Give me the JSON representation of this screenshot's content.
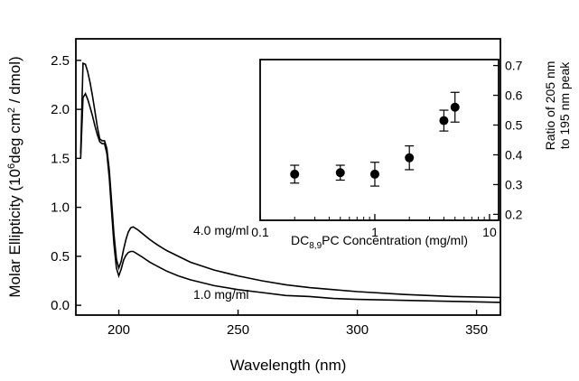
{
  "chart_data": [
    {
      "type": "line",
      "title": "",
      "xlabel": "Wavelength (nm)",
      "ylabel": "Molar Ellipticity (10⁶deg cm² / dmol)",
      "xlim": [
        182,
        360
      ],
      "ylim": [
        -0.1,
        2.72
      ],
      "xticks": [
        200,
        250,
        300,
        350
      ],
      "yticks": [
        0.0,
        0.5,
        1.0,
        1.5,
        2.0,
        2.5
      ],
      "xtick_labels": [
        "200",
        "250",
        "300",
        "350"
      ],
      "ytick_labels": [
        "0.0",
        "0.5",
        "1.0",
        "1.5",
        "2.0",
        "2.5"
      ],
      "grid": false,
      "series": [
        {
          "name": "4.0 mg/ml",
          "x": [
            184,
            185,
            186,
            187,
            188,
            189,
            190,
            191,
            192,
            193,
            194,
            195,
            196,
            197,
            198,
            199,
            200,
            201,
            202,
            203,
            204,
            205,
            206,
            208,
            210,
            213,
            216,
            220,
            225,
            230,
            240,
            250,
            260,
            270,
            280,
            290,
            300,
            320,
            340,
            360
          ],
          "y": [
            1.55,
            2.47,
            2.46,
            2.38,
            2.27,
            2.13,
            1.98,
            1.82,
            1.7,
            1.68,
            1.68,
            1.6,
            1.38,
            1.05,
            0.72,
            0.47,
            0.38,
            0.45,
            0.57,
            0.67,
            0.75,
            0.79,
            0.8,
            0.77,
            0.73,
            0.67,
            0.62,
            0.56,
            0.5,
            0.44,
            0.36,
            0.3,
            0.25,
            0.21,
            0.18,
            0.16,
            0.14,
            0.11,
            0.09,
            0.08
          ]
        },
        {
          "name": "1.0 mg/ml",
          "x": [
            184,
            185,
            186,
            187,
            188,
            189,
            190,
            191,
            192,
            193,
            194,
            195,
            196,
            197,
            198,
            199,
            200,
            201,
            202,
            203,
            204,
            205,
            206,
            208,
            210,
            213,
            216,
            220,
            225,
            230,
            240,
            250,
            260,
            270,
            280,
            290,
            300,
            320,
            340,
            360
          ],
          "y": [
            1.5,
            2.12,
            2.16,
            2.1,
            2.02,
            1.93,
            1.83,
            1.74,
            1.67,
            1.65,
            1.65,
            1.55,
            1.3,
            0.95,
            0.62,
            0.38,
            0.3,
            0.37,
            0.46,
            0.51,
            0.54,
            0.55,
            0.55,
            0.52,
            0.49,
            0.44,
            0.4,
            0.35,
            0.3,
            0.26,
            0.2,
            0.16,
            0.13,
            0.1,
            0.09,
            0.07,
            0.06,
            0.05,
            0.04,
            0.03
          ]
        }
      ],
      "annotations": [
        "4.0 mg/ml",
        "1.0 mg/ml"
      ]
    },
    {
      "type": "scatter",
      "title": "",
      "xlabel": "DC8,9PC Concentration (mg/ml)",
      "ylabel": "Ratio of 205 nm to 195 nm peak",
      "ylabel_lines": [
        "Ratio of 205 nm",
        "to 195 nm peak"
      ],
      "xscale": "log",
      "xlim": [
        0.1,
        12
      ],
      "ylim": [
        0.18,
        0.72
      ],
      "xticks": [
        0.1,
        1,
        10
      ],
      "xtick_labels": [
        "0.1",
        "1",
        "10"
      ],
      "yticks": [
        0.2,
        0.3,
        0.4,
        0.5,
        0.6,
        0.7
      ],
      "ytick_labels": [
        "0.2",
        "0.3",
        "0.4",
        "0.5",
        "0.6",
        "0.7"
      ],
      "grid": false,
      "points": [
        {
          "x": 0.2,
          "y": 0.335,
          "err": 0.03
        },
        {
          "x": 0.5,
          "y": 0.34,
          "err": 0.025
        },
        {
          "x": 1.0,
          "y": 0.335,
          "err": 0.04
        },
        {
          "x": 2.0,
          "y": 0.39,
          "err": 0.04
        },
        {
          "x": 4.0,
          "y": 0.515,
          "err": 0.035
        },
        {
          "x": 5.0,
          "y": 0.56,
          "err": 0.05
        }
      ]
    }
  ]
}
